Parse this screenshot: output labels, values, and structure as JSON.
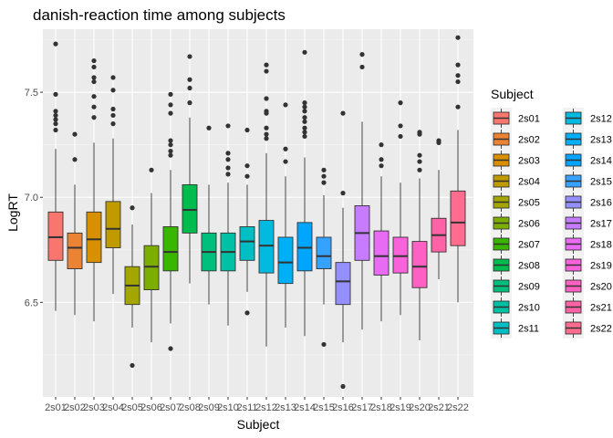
{
  "chart_data": {
    "type": "boxplot",
    "title": "danish-reaction time among subjects",
    "xlabel": "Subject",
    "ylabel": "LogRT",
    "ylim": [
      6.05,
      7.8
    ],
    "yticks": [
      6.5,
      7.0,
      7.5
    ],
    "ytick_labels": [
      "6.5",
      "7.0",
      "7.5"
    ],
    "grid": true,
    "legend": {
      "title": "Subject",
      "position": "right",
      "columns": 2
    },
    "categories": [
      "2s01",
      "2s02",
      "2s03",
      "2s04",
      "2s05",
      "2s06",
      "2s07",
      "2s08",
      "2s09",
      "2s10",
      "2s11",
      "2s12",
      "2s13",
      "2s14",
      "2s15",
      "2s16",
      "2s17",
      "2s18",
      "2s19",
      "2s20",
      "2s21",
      "2s22"
    ],
    "colors": [
      "#F8766D",
      "#EB8335",
      "#D89000",
      "#BF9B00",
      "#A3A500",
      "#7CAE00",
      "#39B600",
      "#00BB4E",
      "#00BF7D",
      "#00C1A3",
      "#00BFC4",
      "#00BAE0",
      "#00B0F6",
      "#00A5FF",
      "#35A2FF",
      "#9590FF",
      "#C77CFF",
      "#E76BF3",
      "#FA62DB",
      "#FF61C3",
      "#FF62A5",
      "#FF6C90"
    ],
    "boxes": [
      {
        "low": 6.46,
        "q1": 6.7,
        "median": 6.81,
        "q3": 6.93,
        "high": 7.23,
        "outliers": [
          7.73,
          7.49,
          7.41,
          7.39,
          7.37,
          7.35,
          7.32
        ]
      },
      {
        "low": 6.44,
        "q1": 6.66,
        "median": 6.76,
        "q3": 6.83,
        "high": 7.06,
        "outliers": [
          7.3,
          7.18
        ]
      },
      {
        "low": 6.41,
        "q1": 6.69,
        "median": 6.8,
        "q3": 6.93,
        "high": 7.26,
        "outliers": [
          7.65,
          7.62,
          7.57,
          7.55,
          7.48,
          7.43,
          7.38
        ]
      },
      {
        "low": 6.54,
        "q1": 6.76,
        "median": 6.85,
        "q3": 6.98,
        "high": 7.28,
        "outliers": [
          7.57,
          7.51,
          7.42,
          7.39,
          7.35
        ]
      },
      {
        "low": 6.38,
        "q1": 6.49,
        "median": 6.58,
        "q3": 6.67,
        "high": 6.87,
        "outliers": [
          6.95,
          6.2
        ]
      },
      {
        "low": 6.31,
        "q1": 6.56,
        "median": 6.67,
        "q3": 6.77,
        "high": 7.02,
        "outliers": [
          7.13
        ]
      },
      {
        "low": 6.4,
        "q1": 6.65,
        "median": 6.74,
        "q3": 6.86,
        "high": 7.13,
        "outliers": [
          7.49,
          7.44,
          7.4,
          7.27,
          7.25,
          7.22,
          7.2,
          6.28
        ]
      },
      {
        "low": 6.59,
        "q1": 6.83,
        "median": 6.94,
        "q3": 7.06,
        "high": 7.38,
        "outliers": [
          7.67,
          7.56,
          7.52,
          7.45
        ]
      },
      {
        "low": 6.49,
        "q1": 6.65,
        "median": 6.74,
        "q3": 6.83,
        "high": 7.06,
        "outliers": [
          7.33
        ]
      },
      {
        "low": 6.39,
        "q1": 6.65,
        "median": 6.74,
        "q3": 6.83,
        "high": 7.07,
        "outliers": [
          7.34,
          7.21,
          7.18,
          7.14,
          7.11
        ]
      },
      {
        "low": 6.55,
        "q1": 6.7,
        "median": 6.79,
        "q3": 6.86,
        "high": 7.06,
        "outliers": [
          7.32,
          7.15,
          7.1,
          6.45
        ]
      },
      {
        "low": 6.29,
        "q1": 6.64,
        "median": 6.77,
        "q3": 6.89,
        "high": 7.21,
        "outliers": [
          7.63,
          7.6,
          7.47,
          7.41,
          7.4,
          7.33,
          7.3,
          7.28
        ]
      },
      {
        "low": 6.38,
        "q1": 6.59,
        "median": 6.69,
        "q3": 6.81,
        "high": 7.1,
        "outliers": [
          7.44,
          7.23,
          7.17
        ]
      },
      {
        "low": 6.34,
        "q1": 6.65,
        "median": 6.76,
        "q3": 6.88,
        "high": 7.19,
        "outliers": [
          7.69,
          7.45,
          7.43,
          7.41,
          7.38,
          7.36,
          7.33,
          7.31,
          7.29
        ]
      },
      {
        "low": 6.49,
        "q1": 6.66,
        "median": 6.72,
        "q3": 6.81,
        "high": 7.01,
        "outliers": [
          7.13,
          7.1,
          7.07,
          6.3
        ]
      },
      {
        "low": 6.31,
        "q1": 6.49,
        "median": 6.6,
        "q3": 6.69,
        "high": 6.95,
        "outliers": [
          7.4,
          7.02,
          6.1
        ]
      },
      {
        "low": 6.37,
        "q1": 6.7,
        "median": 6.83,
        "q3": 6.96,
        "high": 7.36,
        "outliers": [
          7.68,
          7.62
        ]
      },
      {
        "low": 6.41,
        "q1": 6.63,
        "median": 6.72,
        "q3": 6.84,
        "high": 7.1,
        "outliers": [
          7.25,
          7.18,
          7.15
        ]
      },
      {
        "low": 6.44,
        "q1": 6.64,
        "median": 6.72,
        "q3": 6.81,
        "high": 7.07,
        "outliers": [
          7.45,
          7.34,
          7.29
        ]
      },
      {
        "low": 6.32,
        "q1": 6.57,
        "median": 6.67,
        "q3": 6.79,
        "high": 7.09,
        "outliers": [
          7.31,
          7.3,
          7.2,
          7.17,
          7.13
        ]
      },
      {
        "low": 6.61,
        "q1": 6.74,
        "median": 6.82,
        "q3": 6.9,
        "high": 7.13,
        "outliers": [
          7.27,
          7.26
        ]
      },
      {
        "low": 6.5,
        "q1": 6.77,
        "median": 6.88,
        "q3": 7.03,
        "high": 7.32,
        "outliers": [
          7.76,
          7.63,
          7.58,
          7.55,
          7.43
        ]
      }
    ]
  }
}
